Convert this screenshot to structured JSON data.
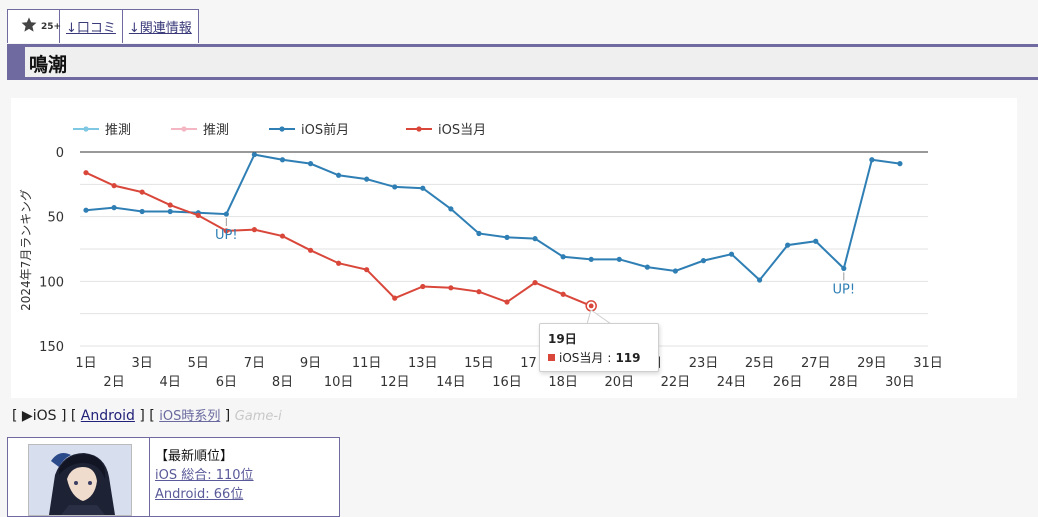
{
  "tabs": {
    "star_count": "25+",
    "reviews_label": "↓口コミ",
    "related_label": "↓関連情報"
  },
  "page_title": "鳴潮",
  "chart_data": {
    "type": "line",
    "ylabel": "2024年7月ランキング",
    "y_reversed": true,
    "ylim": [
      0,
      150
    ],
    "yticks": [
      0,
      50,
      100,
      150
    ],
    "x_days": [
      1,
      2,
      3,
      4,
      5,
      6,
      7,
      8,
      9,
      10,
      11,
      12,
      13,
      14,
      15,
      16,
      17,
      18,
      19,
      20,
      21,
      22,
      23,
      24,
      25,
      26,
      27,
      28,
      29,
      30,
      31
    ],
    "x_tick_labels": [
      "1日",
      "2日",
      "3日",
      "4日",
      "5日",
      "6日",
      "7日",
      "8日",
      "9日",
      "10日",
      "11日",
      "12日",
      "13日",
      "14日",
      "15日",
      "16日",
      "17日",
      "18日",
      "19日",
      "20日",
      "21日",
      "22日",
      "23日",
      "24日",
      "25日",
      "26日",
      "27日",
      "28日",
      "29日",
      "30日",
      "31日"
    ],
    "legend": [
      {
        "name": "推測",
        "color": "#7ec8e3"
      },
      {
        "name": "推測",
        "color": "#f4b6c2"
      },
      {
        "name": "iOS前月",
        "color": "#2f7fb5"
      },
      {
        "name": "iOS当月",
        "color": "#d9473b"
      }
    ],
    "series": [
      {
        "name": "iOS前月",
        "color": "#2f7fb5",
        "x": [
          1,
          2,
          3,
          4,
          5,
          6,
          7,
          8,
          9,
          10,
          11,
          12,
          13,
          14,
          15,
          16,
          17,
          18,
          19,
          20,
          21,
          22,
          23,
          24,
          25,
          26,
          27,
          28,
          29,
          30
        ],
        "values": [
          45,
          43,
          46,
          46,
          47,
          48,
          2,
          6,
          9,
          18,
          21,
          27,
          28,
          44,
          63,
          66,
          67,
          81,
          83,
          83,
          89,
          92,
          84,
          79,
          99,
          72,
          69,
          90,
          6,
          9
        ]
      },
      {
        "name": "iOS当月",
        "color": "#d9473b",
        "x": [
          1,
          2,
          3,
          4,
          5,
          6,
          7,
          8,
          9,
          10,
          11,
          12,
          13,
          14,
          15,
          16,
          17,
          18,
          19
        ],
        "values": [
          16,
          26,
          31,
          41,
          49,
          61,
          60,
          65,
          76,
          86,
          91,
          113,
          104,
          105,
          108,
          116,
          101,
          110,
          119
        ]
      }
    ],
    "annotations": [
      {
        "text": "UP!",
        "series": "iOS前月",
        "x": 6.5
      },
      {
        "text": "UP!",
        "series": "iOS前月",
        "x": 28.5
      }
    ],
    "tooltip": {
      "title": "19日",
      "series": "iOS当月",
      "value": "119"
    }
  },
  "platform": {
    "ios_label": "▶iOS",
    "android_label": "Android",
    "ios_timeseries_label": "iOS時系列",
    "source_label": "Game-i",
    "open_bracket": "[",
    "close_bracket": "]"
  },
  "info": {
    "heading": "【最新順位】",
    "ios_rank": "iOS 総合: 110位",
    "android_rank": "Android: 66位"
  }
}
